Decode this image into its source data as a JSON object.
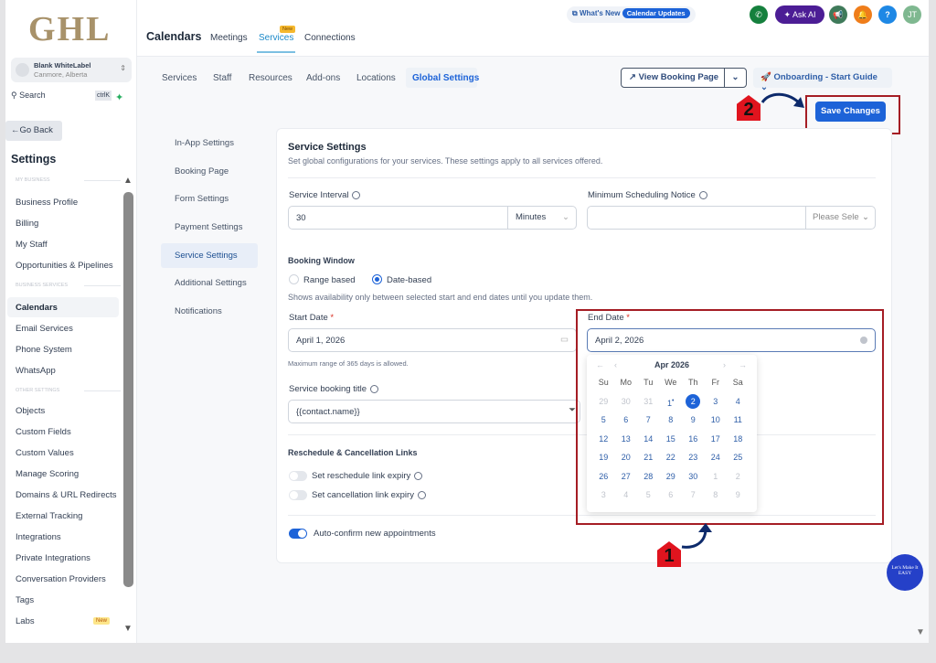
{
  "sidebar": {
    "logo": "GHL",
    "account": {
      "name": "Blank WhiteLabel",
      "location": "Canmore, Alberta"
    },
    "search": {
      "placeholder": "Search",
      "shortcut": "ctrlK"
    },
    "go_back": "Go Back",
    "title": "Settings",
    "sections": [
      {
        "label": "MY BUSINESS",
        "items": [
          "Business Profile",
          "Billing",
          "My Staff",
          "Opportunities & Pipelines"
        ]
      },
      {
        "label": "BUSINESS SERVICES",
        "items": [
          "Calendars",
          "Email Services",
          "Phone System",
          "WhatsApp"
        ]
      },
      {
        "label": "OTHER SETTINGS",
        "items": [
          "Objects",
          "Custom Fields",
          "Custom Values",
          "Manage Scoring",
          "Domains & URL Redirects",
          "External Tracking",
          "Integrations",
          "Private Integrations",
          "Conversation Providers",
          "Tags",
          "Labs"
        ]
      }
    ],
    "active": "Calendars",
    "labs_badge": "New"
  },
  "header": {
    "title": "Calendars",
    "tabs": [
      "Meetings",
      "Services",
      "Connections"
    ],
    "active_tab": "Services",
    "new_badge": "New",
    "whats_new": "What's New",
    "calendar_updates": "Calendar Updates",
    "ask_ai": "Ask AI",
    "avatar": "JT",
    "help": "?"
  },
  "subtabs": [
    "Services",
    "Staff",
    "Resources",
    "Add-ons",
    "Locations",
    "Global Settings"
  ],
  "active_subtab": "Global Settings",
  "actions": {
    "view_booking": "View Booking Page",
    "onboarding": "Onboarding - Start Guide",
    "save": "Save Changes"
  },
  "left_nav": [
    "In-App Settings",
    "Booking Page",
    "Form Settings",
    "Payment Settings",
    "Service Settings",
    "Additional Settings",
    "Notifications"
  ],
  "active_left_nav": "Service Settings",
  "form": {
    "title": "Service Settings",
    "subtitle": "Set global configurations for your services. These settings apply to all services offered.",
    "service_interval": {
      "label": "Service Interval",
      "value": "30",
      "unit": "Minutes"
    },
    "min_notice": {
      "label": "Minimum Scheduling Notice",
      "value": "",
      "unit_placeholder": "Please Sele"
    },
    "booking_window": {
      "label": "Booking Window",
      "options": [
        "Range based",
        "Date-based"
      ],
      "selected": "Date-based",
      "help": "Shows availability only between selected start and end dates until you update them."
    },
    "start_date": {
      "label": "Start Date",
      "value": "April 1, 2026"
    },
    "end_date": {
      "label": "End Date",
      "value": "April 2, 2026"
    },
    "range_note": "Maximum range of 365 days is allowed.",
    "booking_title": {
      "label": "Service booking title",
      "value": "{{contact.name}}"
    },
    "links": {
      "title": "Reschedule & Cancellation Links",
      "reschedule": {
        "label": "Set reschedule link expiry",
        "on": false
      },
      "cancellation": {
        "label": "Set cancellation link expiry",
        "on": false
      }
    },
    "auto_confirm": {
      "label": "Auto-confirm new appointments",
      "on": true
    }
  },
  "calendar": {
    "month": "Apr 2026",
    "weekdays": [
      "Su",
      "Mo",
      "Tu",
      "We",
      "Th",
      "Fr",
      "Sa"
    ],
    "days": [
      "29",
      "30",
      "31",
      "1",
      "2",
      "3",
      "4",
      "5",
      "6",
      "7",
      "8",
      "9",
      "10",
      "11",
      "12",
      "13",
      "14",
      "15",
      "16",
      "17",
      "18",
      "19",
      "20",
      "21",
      "22",
      "23",
      "24",
      "25",
      "26",
      "27",
      "28",
      "29",
      "30",
      "1",
      "2",
      "3",
      "4",
      "5",
      "6",
      "7",
      "8",
      "9"
    ],
    "selected": "2",
    "today": "1"
  },
  "annotations": {
    "step1": "1",
    "step2": "2"
  },
  "badge": "Let's Make It EASY",
  "colors": {
    "primary": "#1d63d8",
    "annotation": "#a51d24"
  }
}
